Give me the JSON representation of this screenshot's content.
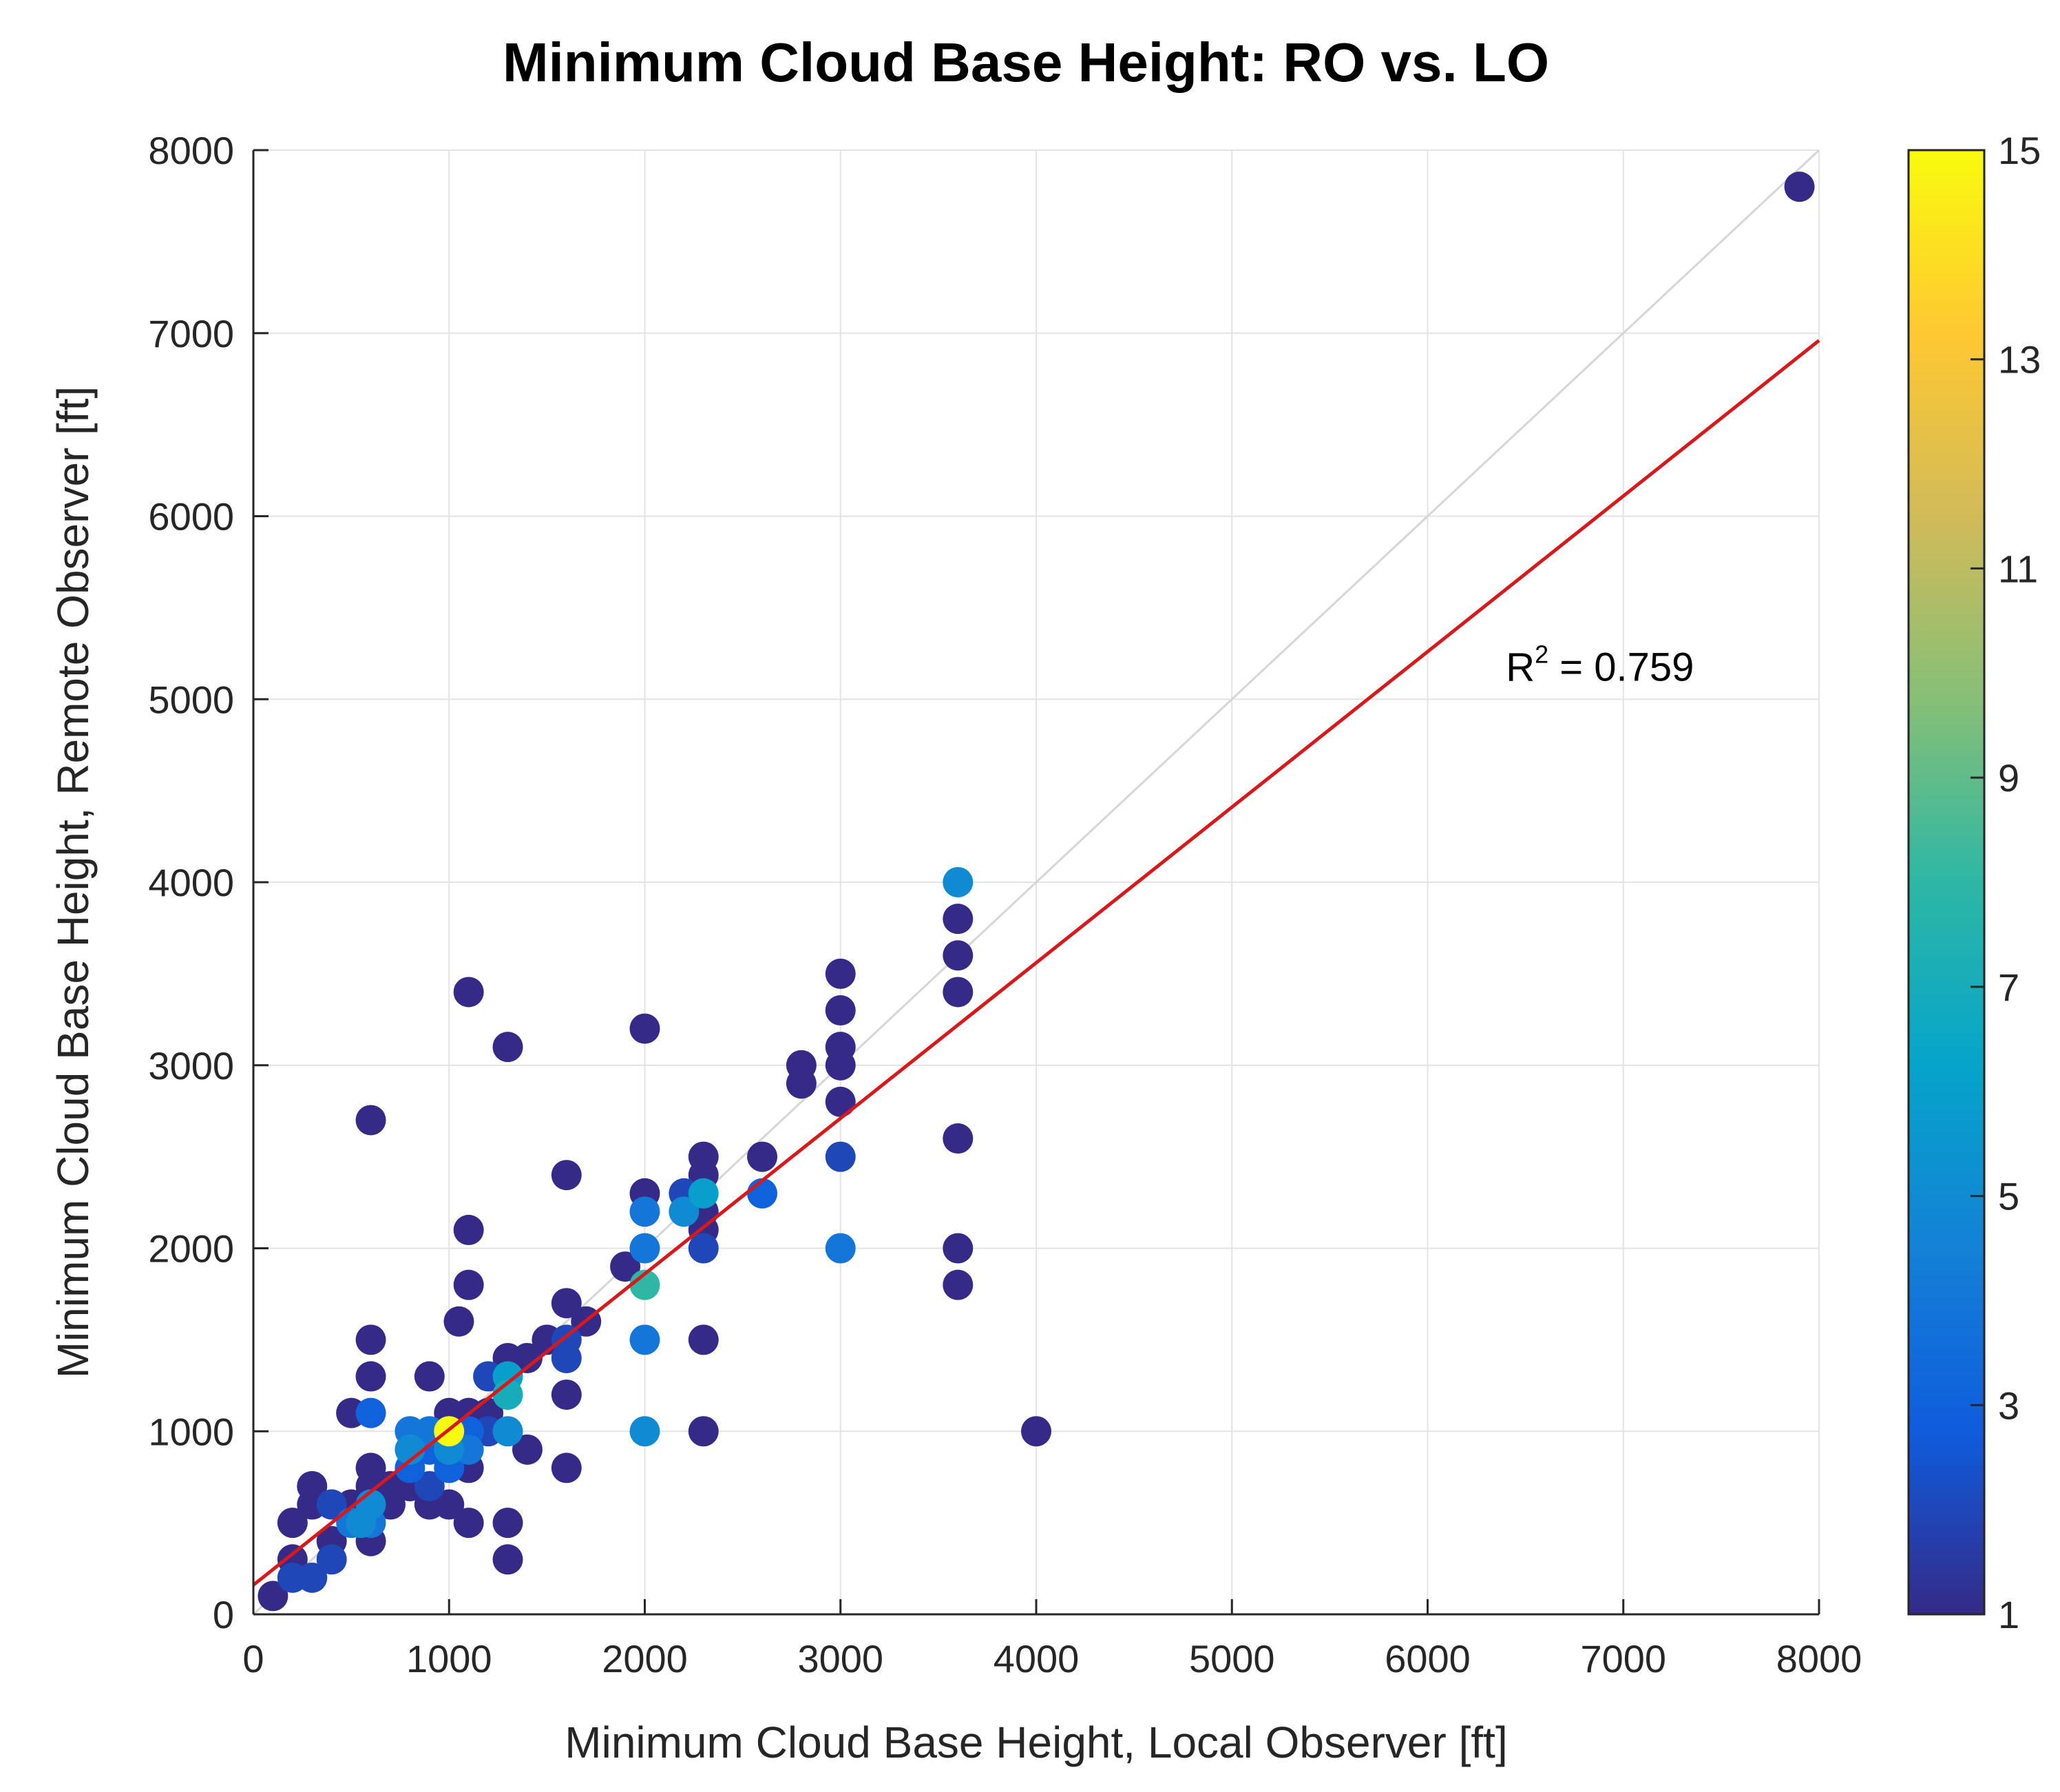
{
  "chart_data": {
    "type": "scatter",
    "title": "Minimum Cloud Base Height: RO vs. LO",
    "xlabel": "Minimum Cloud Base Height, Local Observer [ft]",
    "ylabel": "Minimum Cloud Base Height, Remote Observer [ft]",
    "xlim": [
      0,
      8000
    ],
    "ylim": [
      0,
      8000
    ],
    "xticks": [
      0,
      1000,
      2000,
      3000,
      4000,
      5000,
      6000,
      7000,
      8000
    ],
    "yticks": [
      0,
      1000,
      2000,
      3000,
      4000,
      5000,
      6000,
      7000,
      8000
    ],
    "grid": true,
    "reference_line": {
      "name": "1:1",
      "x": [
        0,
        8000
      ],
      "y": [
        0,
        8000
      ],
      "color": "#d6d6d6"
    },
    "fit_line": {
      "name": "linear fit",
      "x": [
        0,
        8000
      ],
      "y": [
        160,
        6960
      ],
      "color": "#d7191c"
    },
    "annotation": {
      "base": "R",
      "sup": "2",
      "rest": " = 0.759",
      "x": 6400,
      "y": 5100
    },
    "colorbar": {
      "label_ticks": [
        1,
        3,
        5,
        7,
        9,
        11,
        13,
        15
      ],
      "range": [
        1,
        15
      ],
      "colormap": [
        "#352a87",
        "#0f5cdd",
        "#1481d6",
        "#06a4ca",
        "#2eb7a4",
        "#87bf77",
        "#d1bb59",
        "#fec832",
        "#f9fb0e"
      ]
    },
    "points": [
      [
        100,
        100,
        1
      ],
      [
        200,
        300,
        1
      ],
      [
        200,
        500,
        1
      ],
      [
        200,
        200,
        2
      ],
      [
        300,
        200,
        2
      ],
      [
        300,
        700,
        1
      ],
      [
        300,
        600,
        1
      ],
      [
        400,
        300,
        2
      ],
      [
        400,
        600,
        2
      ],
      [
        400,
        400,
        1
      ],
      [
        500,
        1100,
        1
      ],
      [
        500,
        600,
        1
      ],
      [
        500,
        500,
        4
      ],
      [
        550,
        500,
        5
      ],
      [
        600,
        1100,
        3
      ],
      [
        600,
        1500,
        1
      ],
      [
        600,
        1300,
        1
      ],
      [
        600,
        800,
        1
      ],
      [
        600,
        700,
        1
      ],
      [
        600,
        600,
        5
      ],
      [
        600,
        500,
        4
      ],
      [
        600,
        400,
        1
      ],
      [
        600,
        2700,
        1
      ],
      [
        700,
        700,
        1
      ],
      [
        700,
        600,
        1
      ],
      [
        800,
        1000,
        4
      ],
      [
        800,
        900,
        5
      ],
      [
        800,
        800,
        3
      ],
      [
        800,
        700,
        1
      ],
      [
        900,
        1300,
        1
      ],
      [
        900,
        1000,
        4
      ],
      [
        900,
        900,
        3
      ],
      [
        900,
        700,
        2
      ],
      [
        900,
        600,
        1
      ],
      [
        1000,
        1100,
        1
      ],
      [
        1000,
        1000,
        15
      ],
      [
        1000,
        900,
        5
      ],
      [
        1000,
        800,
        3
      ],
      [
        1000,
        600,
        1
      ],
      [
        1100,
        3400,
        1
      ],
      [
        1100,
        2100,
        1
      ],
      [
        1100,
        1800,
        1
      ],
      [
        1100,
        1100,
        1
      ],
      [
        1100,
        1000,
        3
      ],
      [
        1100,
        900,
        4
      ],
      [
        1100,
        800,
        1
      ],
      [
        1100,
        500,
        1
      ],
      [
        1050,
        1600,
        1
      ],
      [
        1200,
        1300,
        2
      ],
      [
        1200,
        1100,
        1
      ],
      [
        1200,
        1000,
        2
      ],
      [
        1300,
        3100,
        1
      ],
      [
        1300,
        1400,
        1
      ],
      [
        1300,
        1300,
        6
      ],
      [
        1300,
        1200,
        7
      ],
      [
        1300,
        1000,
        5
      ],
      [
        1300,
        500,
        1
      ],
      [
        1300,
        300,
        1
      ],
      [
        1400,
        1400,
        1
      ],
      [
        1400,
        900,
        1
      ],
      [
        1500,
        1500,
        1
      ],
      [
        1600,
        2400,
        1
      ],
      [
        1600,
        1700,
        1
      ],
      [
        1600,
        1500,
        2
      ],
      [
        1600,
        1400,
        2
      ],
      [
        1600,
        1200,
        1
      ],
      [
        1600,
        800,
        1
      ],
      [
        1700,
        1600,
        1
      ],
      [
        1900,
        1900,
        1
      ],
      [
        2000,
        3200,
        1
      ],
      [
        2000,
        2300,
        1
      ],
      [
        2000,
        2200,
        4
      ],
      [
        2000,
        2000,
        4
      ],
      [
        2000,
        1800,
        8
      ],
      [
        2000,
        1500,
        4
      ],
      [
        2000,
        1000,
        5
      ],
      [
        2200,
        2300,
        2
      ],
      [
        2200,
        2200,
        5
      ],
      [
        2300,
        2500,
        1
      ],
      [
        2300,
        2400,
        1
      ],
      [
        2300,
        2300,
        6
      ],
      [
        2300,
        2200,
        1
      ],
      [
        2300,
        2100,
        1
      ],
      [
        2300,
        2000,
        2
      ],
      [
        2300,
        1500,
        1
      ],
      [
        2300,
        1000,
        1
      ],
      [
        2600,
        2500,
        1
      ],
      [
        2600,
        2300,
        3
      ],
      [
        2800,
        3000,
        1
      ],
      [
        2800,
        2900,
        1
      ],
      [
        3000,
        3500,
        1
      ],
      [
        3000,
        3300,
        1
      ],
      [
        3000,
        3100,
        1
      ],
      [
        3000,
        3000,
        1
      ],
      [
        3000,
        2800,
        1
      ],
      [
        3000,
        2500,
        2
      ],
      [
        3000,
        2000,
        4
      ],
      [
        3600,
        4000,
        5
      ],
      [
        3600,
        3800,
        1
      ],
      [
        3600,
        3600,
        1
      ],
      [
        3600,
        3400,
        1
      ],
      [
        3600,
        2600,
        1
      ],
      [
        3600,
        2000,
        1
      ],
      [
        3600,
        1800,
        1
      ],
      [
        4000,
        1000,
        1
      ],
      [
        7900,
        7800,
        1
      ]
    ]
  }
}
